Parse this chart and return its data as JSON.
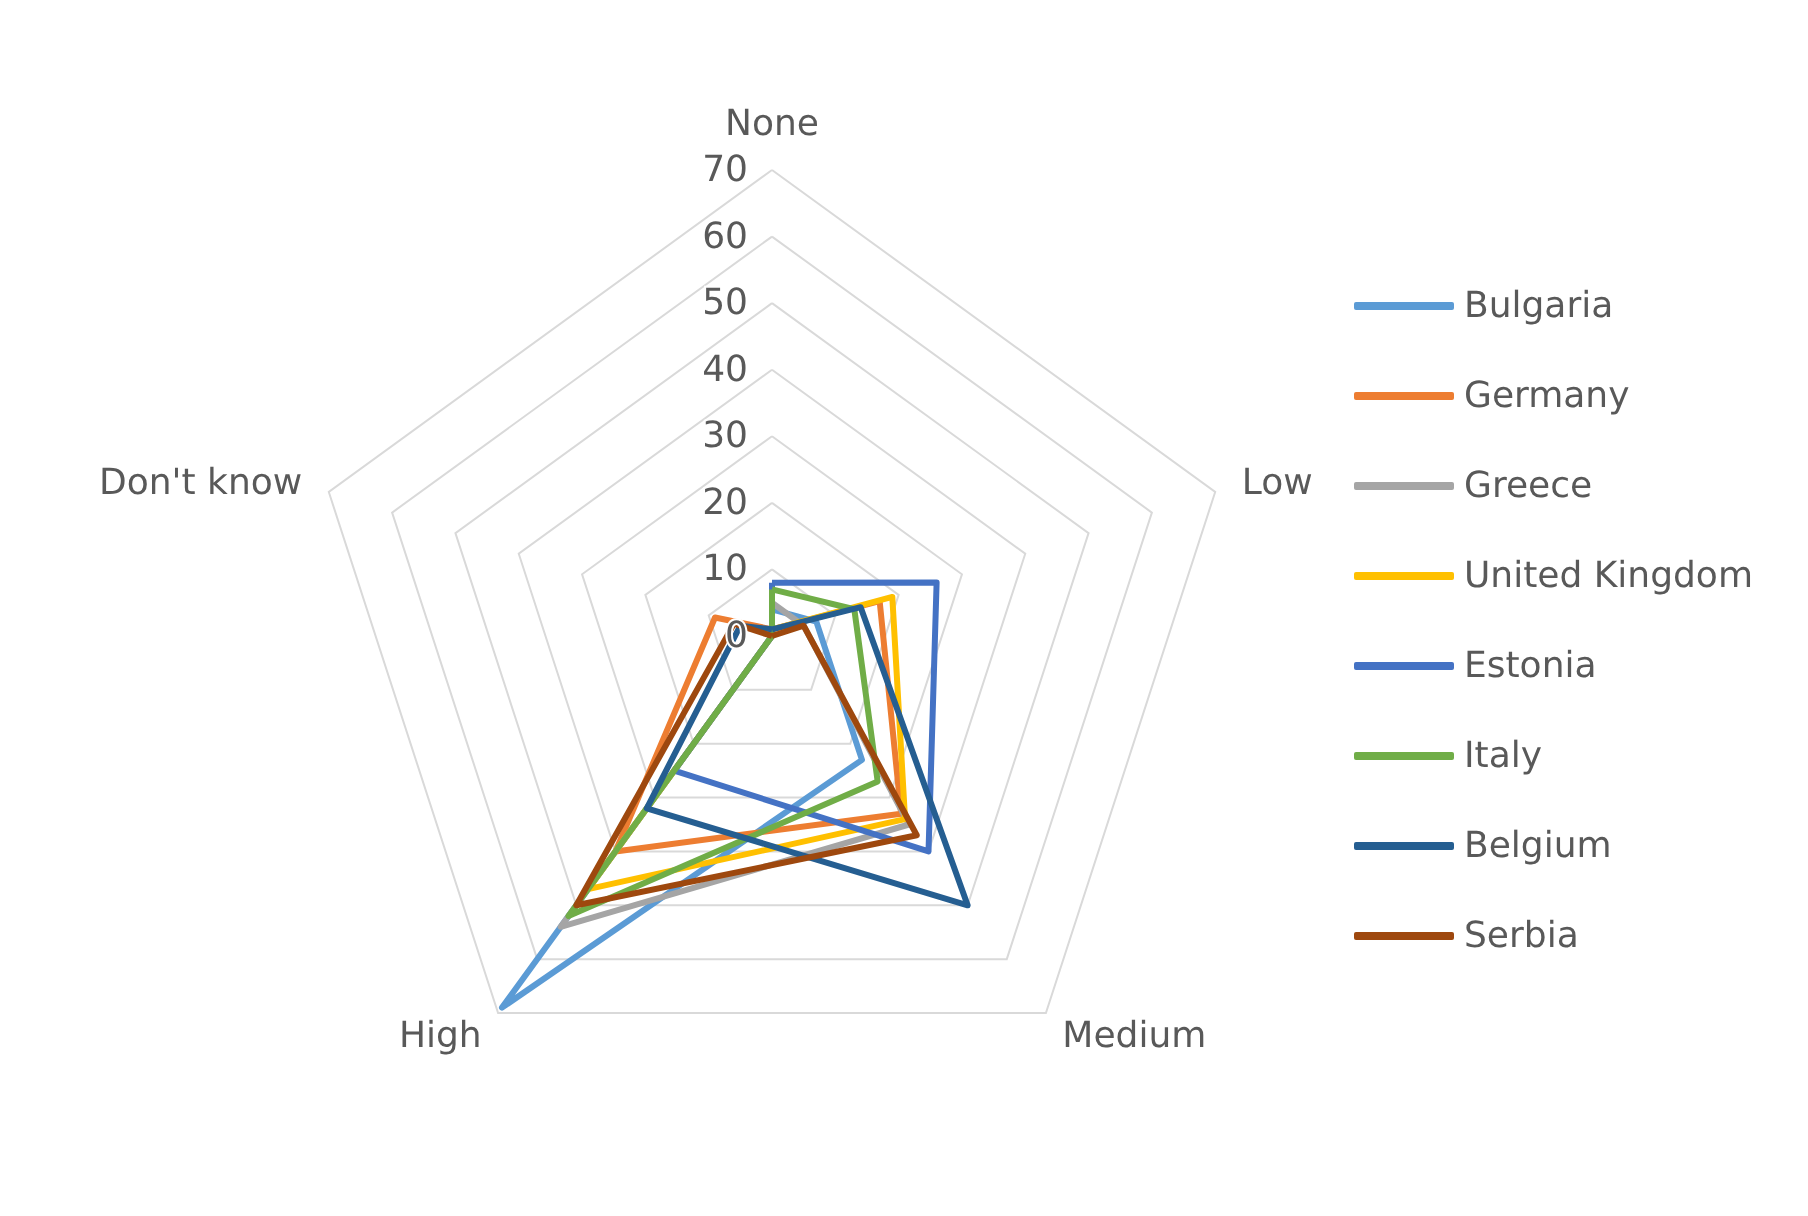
{
  "chart_data": {
    "type": "radar",
    "categories": [
      "None",
      "Low",
      "Medium",
      "High",
      "Don't know"
    ],
    "ylim": [
      0,
      70
    ],
    "yticks": [
      0,
      10,
      20,
      30,
      40,
      50,
      60,
      70
    ],
    "grid": true,
    "legend": "right",
    "marker": "none",
    "line_style": "solid",
    "series": [
      {
        "name": "Bulgaria",
        "color": "#5b9bd5",
        "values": [
          4,
          7,
          23,
          69,
          0
        ]
      },
      {
        "name": "Germany",
        "color": "#ed7d31",
        "values": [
          1,
          17,
          33,
          40,
          9
        ]
      },
      {
        "name": "Greece",
        "color": "#a5a5a5",
        "values": [
          5,
          5,
          35,
          54,
          0
        ]
      },
      {
        "name": "United Kingdom",
        "color": "#ffc000",
        "values": [
          1,
          19,
          34,
          47,
          0
        ]
      },
      {
        "name": "Estonia",
        "color": "#4472c4",
        "values": [
          8,
          26,
          40,
          25,
          0
        ]
      },
      {
        "name": "Italy",
        "color": "#70ad47",
        "values": [
          7,
          13,
          27,
          52,
          0
        ]
      },
      {
        "name": "Belgium",
        "color": "#255e91",
        "values": [
          1,
          14,
          50,
          32,
          5
        ]
      },
      {
        "name": "Serbia",
        "color": "#9e480e",
        "values": [
          0,
          5,
          37,
          50,
          6
        ]
      }
    ]
  }
}
